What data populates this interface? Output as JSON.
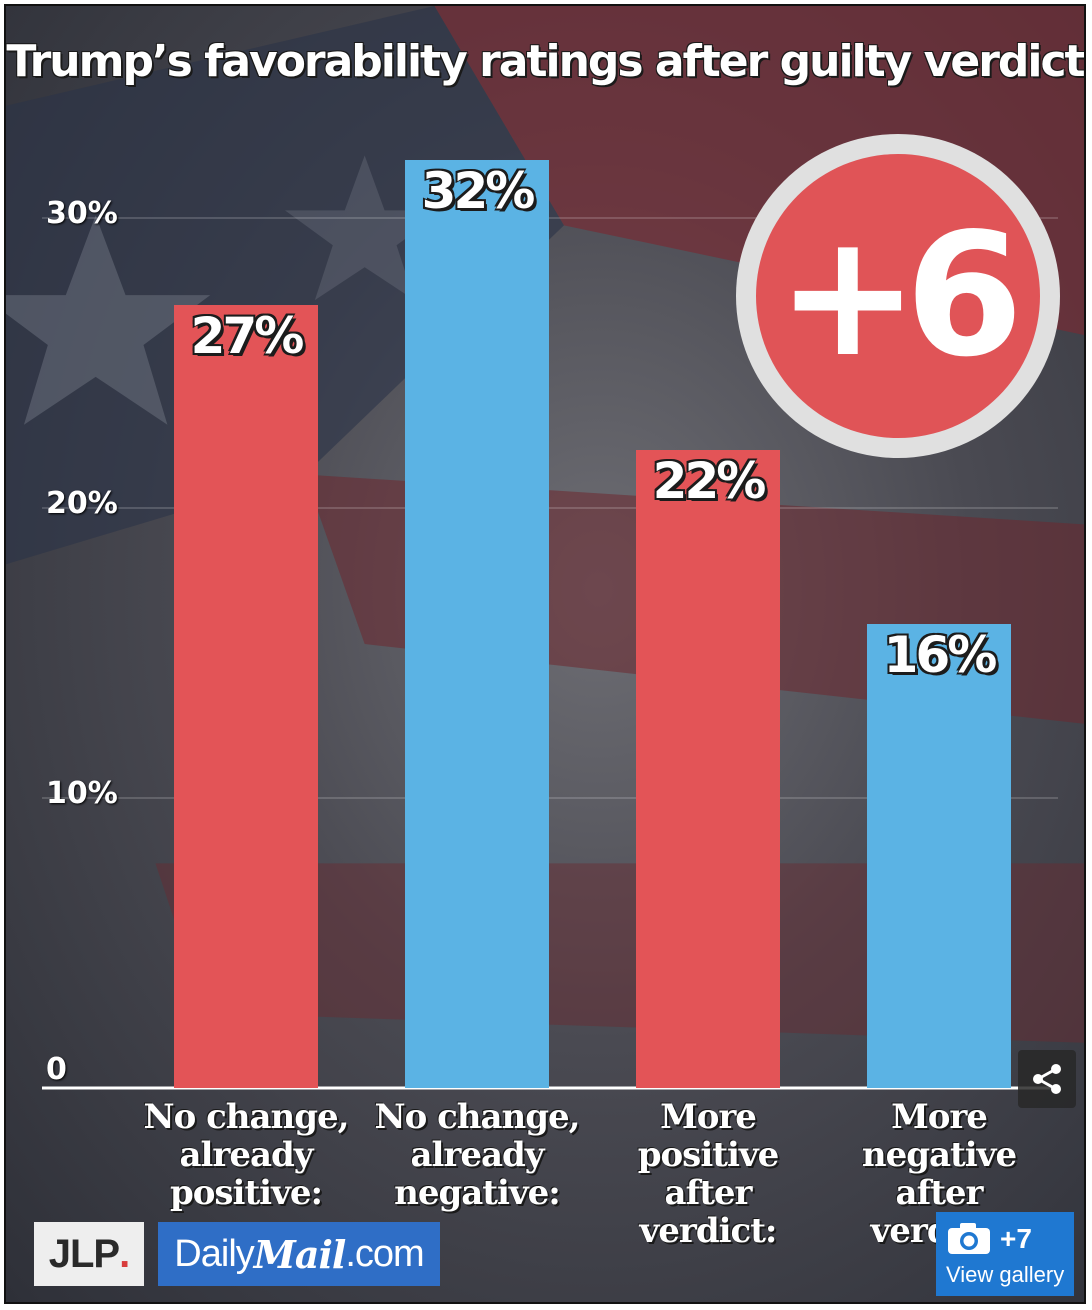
{
  "title": "Trump’s favorability ratings after guilty verdict",
  "chart_data": {
    "type": "bar",
    "title": "Trump’s favorability ratings after guilty verdict",
    "categories": [
      "No change,\nalready\npositive:",
      "No change,\nalready\nnegative:",
      "More\npositive\nafter\nverdict:",
      "More\nnegative\nafter\nverdict:"
    ],
    "values": [
      27,
      32,
      22,
      16
    ],
    "value_labels": [
      "27%",
      "32%",
      "22%",
      "16%"
    ],
    "bar_colors": [
      "#e35457",
      "#5bb3e4",
      "#e35457",
      "#5bb3e4"
    ],
    "y_ticks": [
      0,
      10,
      20,
      30
    ],
    "y_tick_labels": [
      "0",
      "10%",
      "20%",
      "30%"
    ],
    "ylim": [
      0,
      32
    ],
    "xlabel": "",
    "ylabel": "",
    "grid": true
  },
  "badge": {
    "text": "+6"
  },
  "logos": {
    "jlp": "JLP",
    "jlp_dot": ".",
    "dm_daily": "Daily",
    "dm_mail": "Mail",
    "dm_com": ".com"
  },
  "gallery": {
    "count": "+7",
    "label": "View gallery"
  },
  "icons": {
    "share": "share-icon",
    "camera": "camera-icon"
  }
}
